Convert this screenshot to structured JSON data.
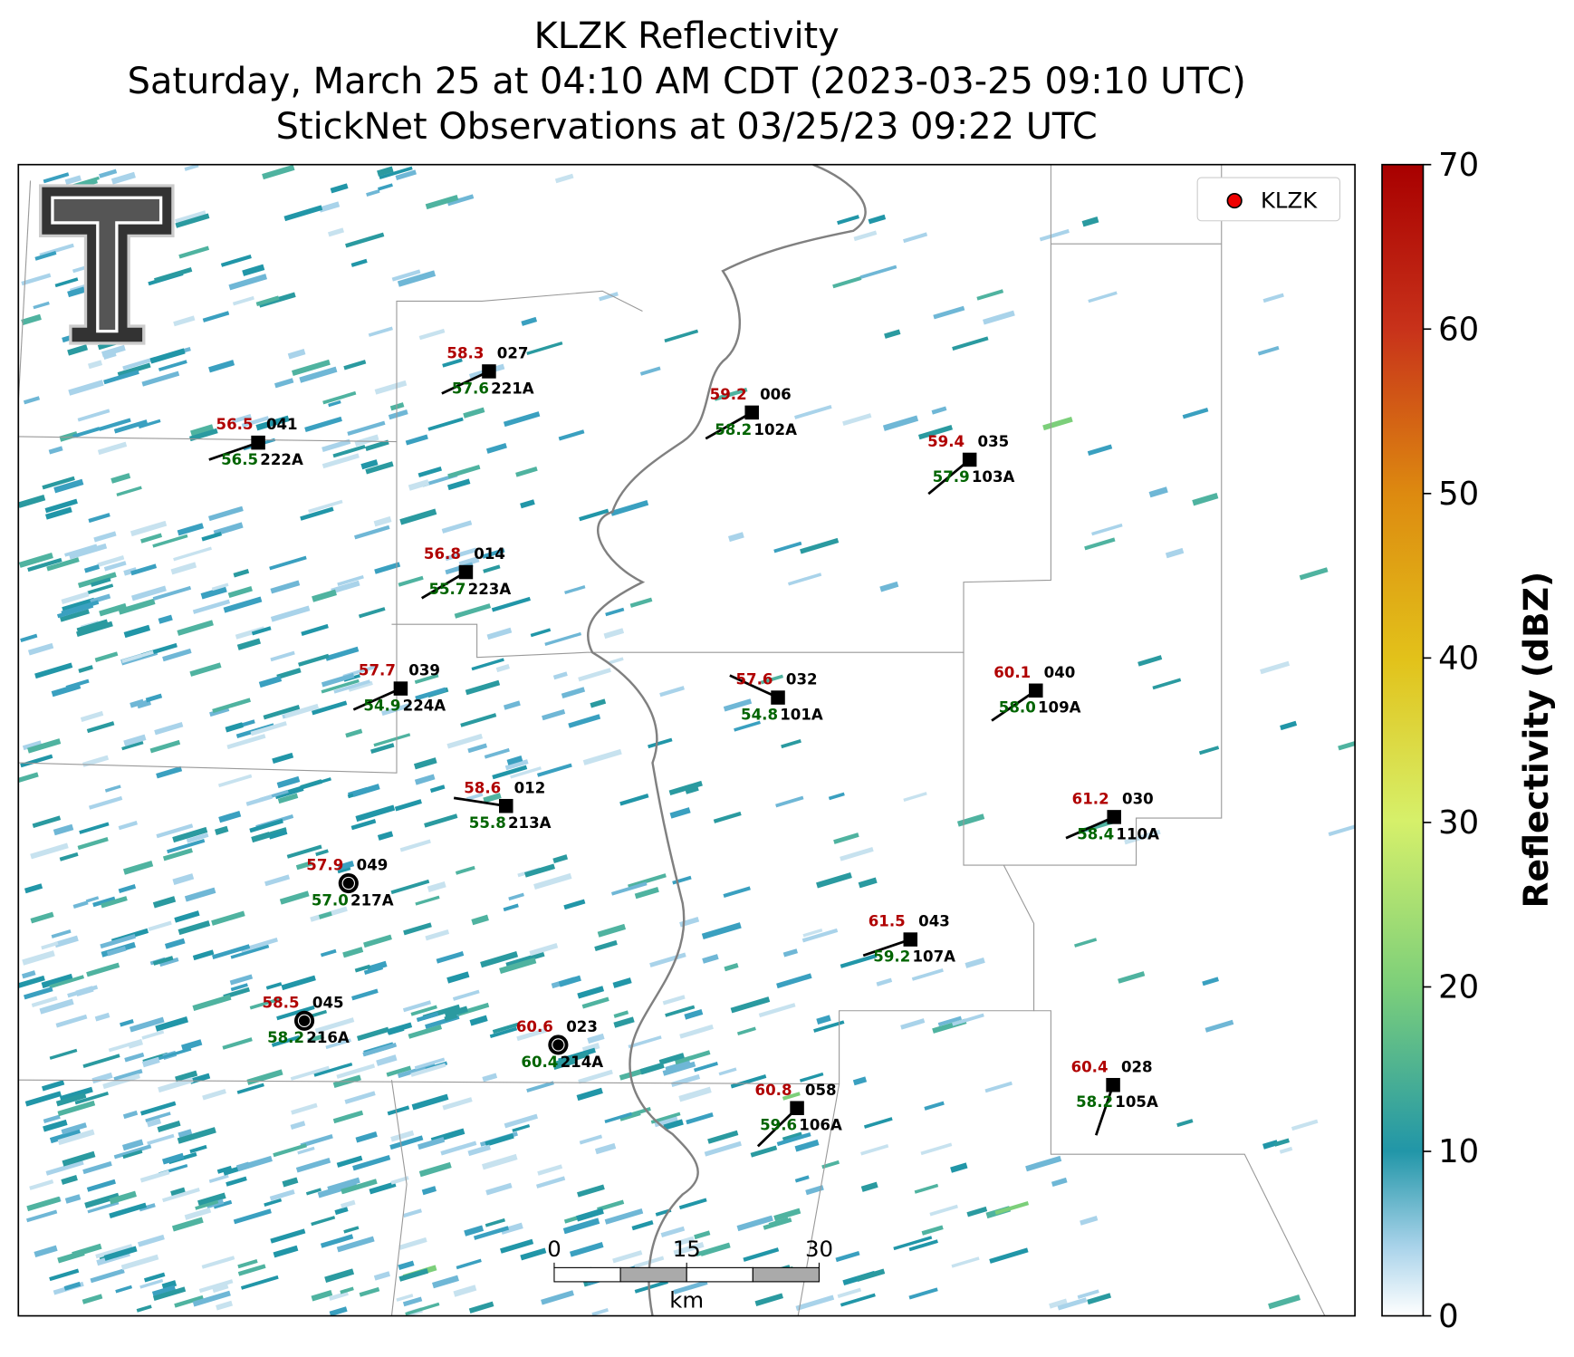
{
  "title": [
    "KLZK Reflectivity",
    "Saturday, March 25 at 04:10 AM CDT (2023-03-25 09:10 UTC)",
    "StickNet Observations at 03/25/23 09:22 UTC"
  ],
  "legend": "KLZK",
  "colorbar": {
    "label": "Reflectivity (dBZ)",
    "ticks": [
      0,
      10,
      20,
      30,
      40,
      50,
      60,
      70
    ]
  },
  "scale_bar": {
    "ticks": [
      0,
      15,
      30
    ],
    "unit": "km"
  },
  "stations": [
    {
      "temperature": "58.3",
      "dewpoint": "57.6",
      "id": "027",
      "name": "221A"
    },
    {
      "temperature": "56.5",
      "dewpoint": "56.5",
      "id": "041",
      "name": "222A"
    },
    {
      "temperature": "59.2",
      "dewpoint": "58.2",
      "id": "006",
      "name": "102A"
    },
    {
      "temperature": "59.4",
      "dewpoint": "57.9",
      "id": "035",
      "name": "103A"
    },
    {
      "temperature": "56.8",
      "dewpoint": "55.7",
      "id": "014",
      "name": "223A"
    },
    {
      "temperature": "57.7",
      "dewpoint": "54.9",
      "id": "039",
      "name": "224A"
    },
    {
      "temperature": "57.6",
      "dewpoint": "54.8",
      "id": "032",
      "name": "101A"
    },
    {
      "temperature": "60.1",
      "dewpoint": "58.0",
      "id": "040",
      "name": "109A"
    },
    {
      "temperature": "58.6",
      "dewpoint": "55.8",
      "id": "012",
      "name": "213A"
    },
    {
      "temperature": "61.2",
      "dewpoint": "58.4",
      "id": "030",
      "name": "110A"
    },
    {
      "temperature": "57.9",
      "dewpoint": "57.0",
      "id": "049",
      "name": "217A"
    },
    {
      "temperature": "61.5",
      "dewpoint": "59.2",
      "id": "043",
      "name": "107A"
    },
    {
      "temperature": "58.5",
      "dewpoint": "58.2",
      "id": "045",
      "name": "216A"
    },
    {
      "temperature": "60.6",
      "dewpoint": "60.4",
      "id": "023",
      "name": "214A"
    },
    {
      "temperature": "60.8",
      "dewpoint": "59.6",
      "id": "058",
      "name": "106A"
    },
    {
      "temperature": "60.4",
      "dewpoint": "58.2",
      "id": "028",
      "name": "105A"
    }
  ]
}
